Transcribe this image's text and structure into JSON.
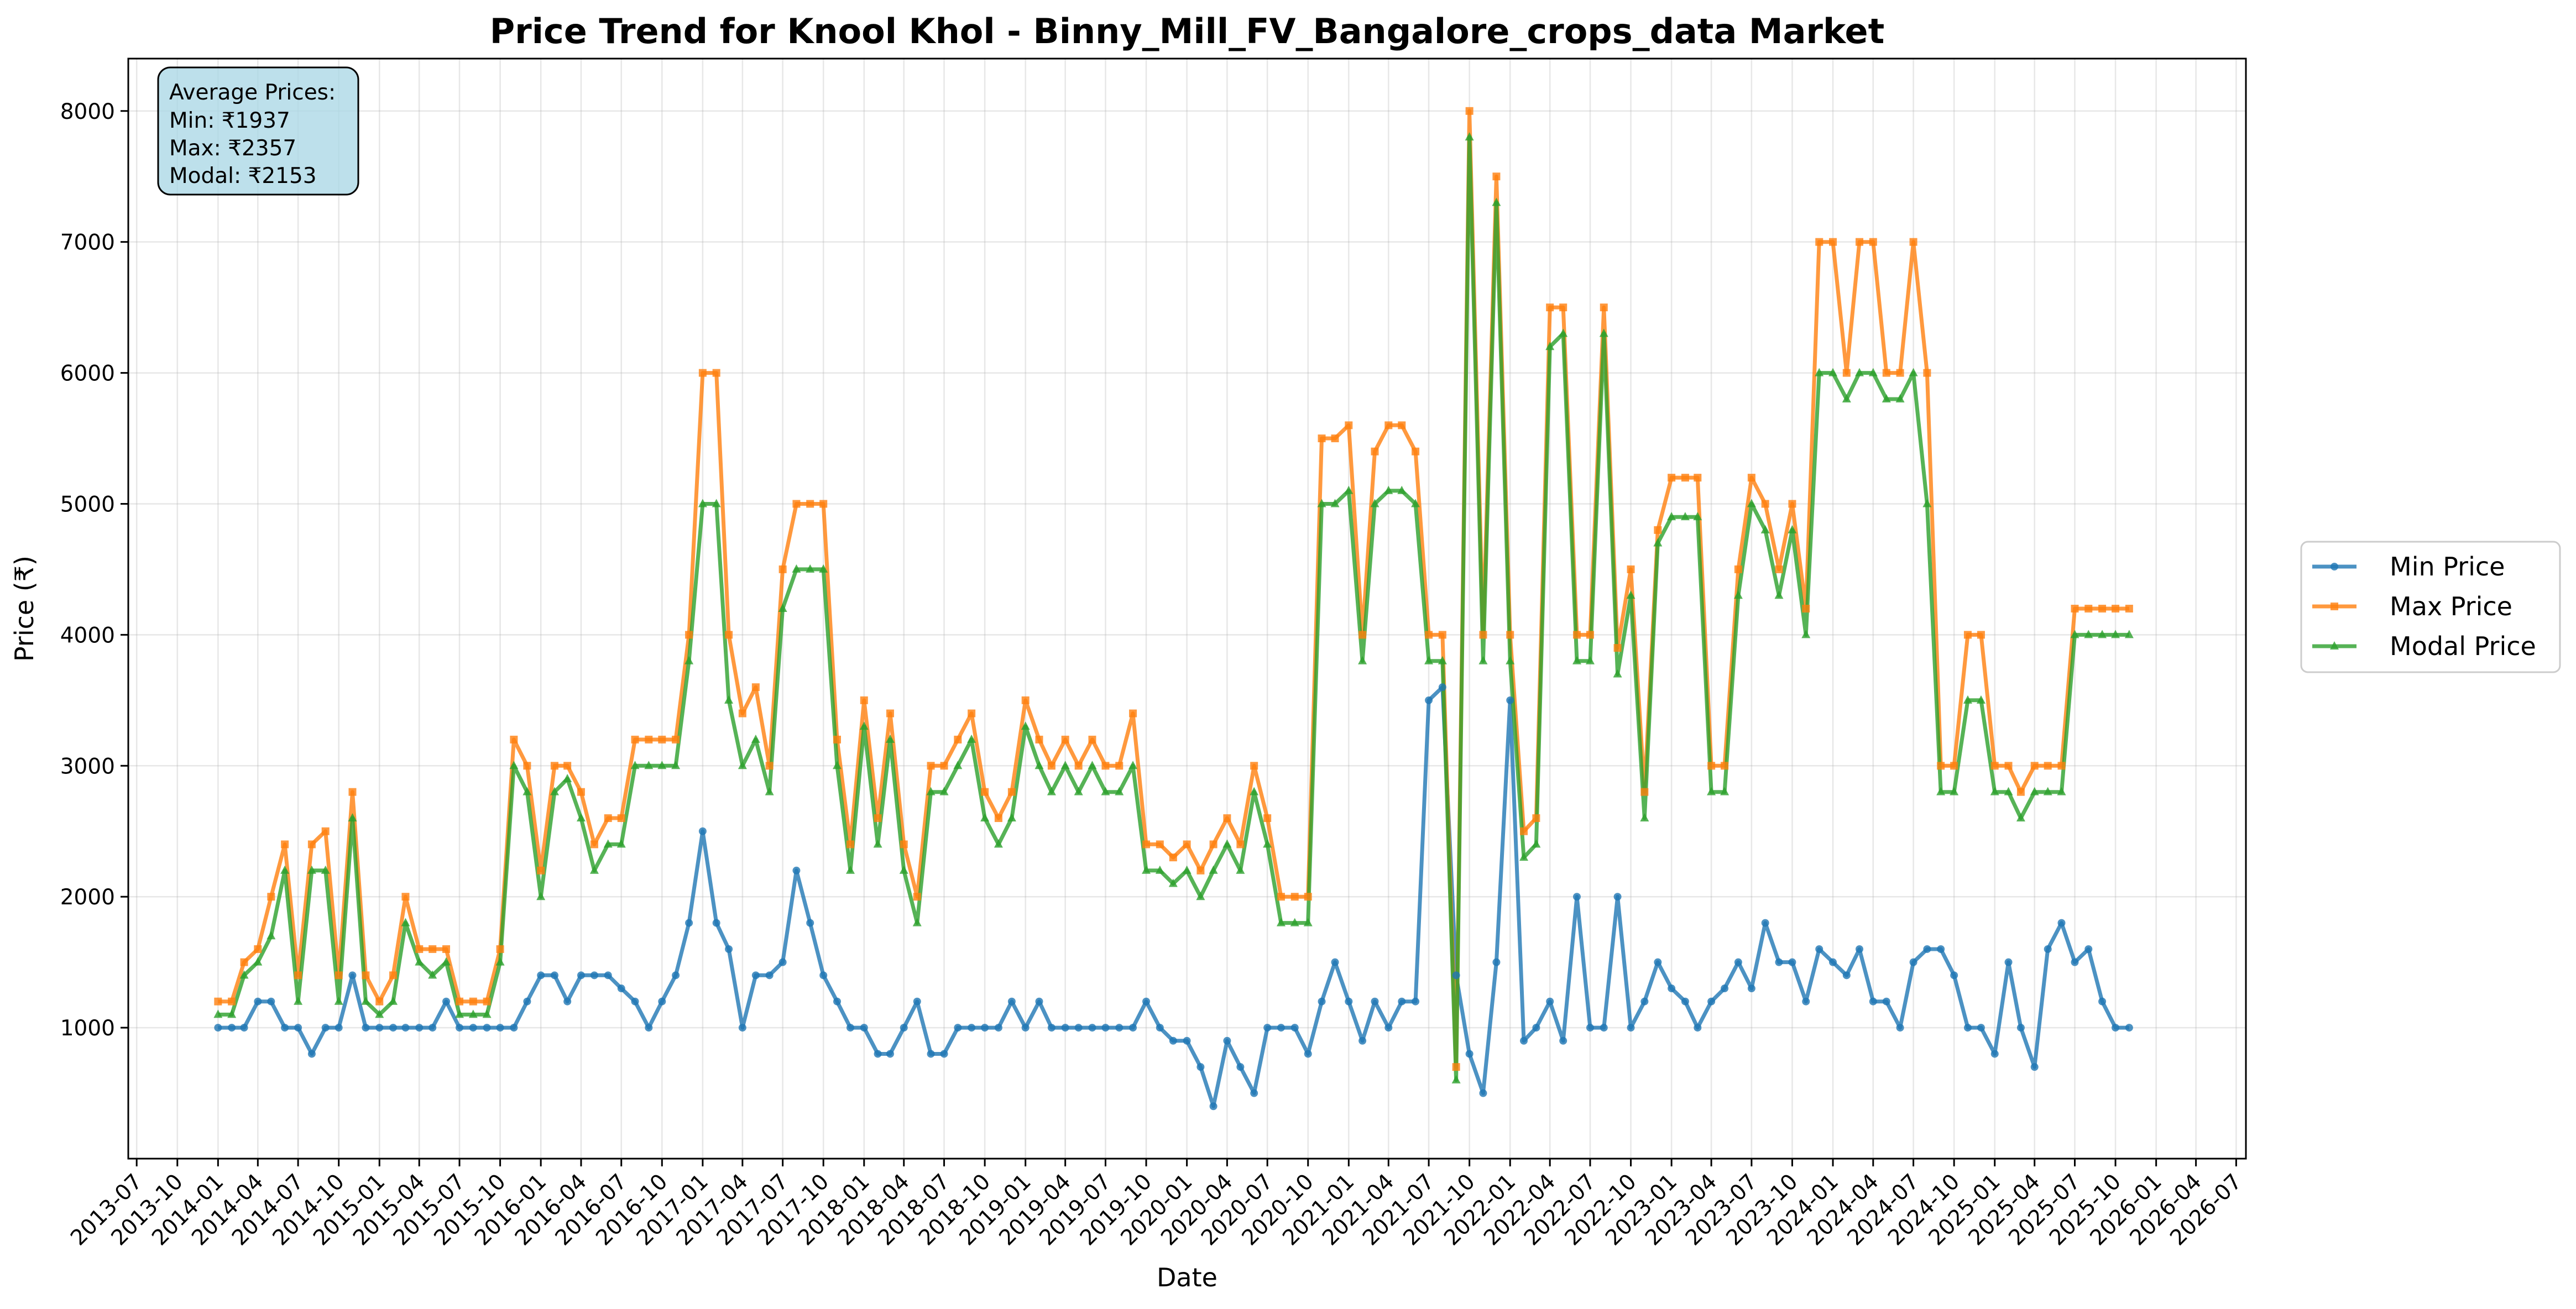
{
  "chart_data": {
    "type": "line",
    "title": "Price Trend for Knool Khol - Binny_Mill_FV_Bangalore_crops_data Market",
    "xlabel": "Date",
    "ylabel": "Price (₹)",
    "x_range": [
      "2013-06-12",
      "2026-07-23"
    ],
    "ylim": [
      0,
      8400
    ],
    "y_ticks": [
      1000,
      2000,
      3000,
      4000,
      5000,
      6000,
      7000,
      8000
    ],
    "x_ticks": [
      "2013-07",
      "2013-10",
      "2014-01",
      "2014-04",
      "2014-07",
      "2014-10",
      "2015-01",
      "2015-04",
      "2015-07",
      "2015-10",
      "2016-01",
      "2016-04",
      "2016-07",
      "2016-10",
      "2017-01",
      "2017-04",
      "2017-07",
      "2017-10",
      "2018-01",
      "2018-04",
      "2018-07",
      "2018-10",
      "2019-01",
      "2019-04",
      "2019-07",
      "2019-10",
      "2020-01",
      "2020-04",
      "2020-07",
      "2020-10",
      "2021-01",
      "2021-04",
      "2021-07",
      "2021-10",
      "2022-01",
      "2022-04",
      "2022-07",
      "2022-10",
      "2023-01",
      "2023-04",
      "2023-07",
      "2023-10",
      "2024-01",
      "2024-04",
      "2024-07",
      "2024-10",
      "2025-01",
      "2025-04",
      "2025-07",
      "2025-10",
      "2026-01",
      "2026-04",
      "2026-07"
    ],
    "grid": true,
    "legend_position": "outside right",
    "annotation": {
      "heading": "Average Prices:",
      "lines": [
        "Min: ₹1937",
        "Max: ₹2357",
        "Modal: ₹2153"
      ]
    },
    "x": [
      "2014-01-01",
      "2014-02-01",
      "2014-03-01",
      "2014-04-01",
      "2014-05-01",
      "2014-06-01",
      "2014-07-01",
      "2014-08-01",
      "2014-09-01",
      "2014-10-01",
      "2014-11-01",
      "2014-12-01",
      "2015-01-01",
      "2015-02-01",
      "2015-03-01",
      "2015-04-01",
      "2015-05-01",
      "2015-06-01",
      "2015-07-01",
      "2015-08-01",
      "2015-09-01",
      "2015-10-01",
      "2015-11-01",
      "2015-12-01",
      "2016-01-01",
      "2016-02-01",
      "2016-03-01",
      "2016-04-01",
      "2016-05-01",
      "2016-06-01",
      "2016-07-01",
      "2016-08-01",
      "2016-09-01",
      "2016-10-01",
      "2016-11-01",
      "2016-12-01",
      "2017-01-01",
      "2017-02-01",
      "2017-03-01",
      "2017-04-01",
      "2017-05-01",
      "2017-06-01",
      "2017-07-01",
      "2017-08-01",
      "2017-09-01",
      "2017-10-01",
      "2017-11-01",
      "2017-12-01",
      "2018-01-01",
      "2018-02-01",
      "2018-03-01",
      "2018-04-01",
      "2018-05-01",
      "2018-06-01",
      "2018-07-01",
      "2018-08-01",
      "2018-09-01",
      "2018-10-01",
      "2018-11-01",
      "2018-12-01",
      "2019-01-01",
      "2019-02-01",
      "2019-03-01",
      "2019-04-01",
      "2019-05-01",
      "2019-06-01",
      "2019-07-01",
      "2019-08-01",
      "2019-09-01",
      "2019-10-01",
      "2019-11-01",
      "2019-12-01",
      "2020-01-01",
      "2020-02-01",
      "2020-03-01",
      "2020-04-01",
      "2020-05-01",
      "2020-06-01",
      "2020-07-01",
      "2020-08-01",
      "2020-09-01",
      "2020-10-01",
      "2020-11-01",
      "2020-12-01",
      "2021-01-01",
      "2021-02-01",
      "2021-03-01",
      "2021-04-01",
      "2021-05-01",
      "2021-06-01",
      "2021-07-01",
      "2021-08-01",
      "2021-09-01",
      "2021-10-01",
      "2021-11-01",
      "2021-12-01",
      "2022-01-01",
      "2022-02-01",
      "2022-03-01",
      "2022-04-01",
      "2022-05-01",
      "2022-06-01",
      "2022-07-01",
      "2022-08-01",
      "2022-09-01",
      "2022-10-01",
      "2022-11-01",
      "2022-12-01",
      "2023-01-01",
      "2023-02-01",
      "2023-03-01",
      "2023-04-01",
      "2023-05-01",
      "2023-06-01",
      "2023-07-01",
      "2023-08-01",
      "2023-09-01",
      "2023-10-01",
      "2023-11-01",
      "2023-12-01",
      "2024-01-01",
      "2024-02-01",
      "2024-03-01",
      "2024-04-01",
      "2024-05-01",
      "2024-06-01",
      "2024-07-01",
      "2024-08-01",
      "2024-09-01",
      "2024-10-01",
      "2024-11-01",
      "2024-12-01",
      "2025-01-01",
      "2025-02-01",
      "2025-03-01",
      "2025-04-01",
      "2025-05-01",
      "2025-06-01",
      "2025-07-01",
      "2025-08-01",
      "2025-09-01",
      "2025-10-01",
      "2025-11-01"
    ],
    "series": [
      {
        "name": "Min Price",
        "color": "#1f77b4",
        "marker": "circle",
        "values": [
          1000,
          1000,
          1000,
          1200,
          1200,
          1000,
          1000,
          800,
          1000,
          1000,
          1400,
          1000,
          1000,
          1000,
          1000,
          1000,
          1000,
          1200,
          1000,
          1000,
          1000,
          1000,
          1000,
          1200,
          1400,
          1400,
          1200,
          1400,
          1400,
          1400,
          1300,
          1200,
          1000,
          1200,
          1400,
          1800,
          2500,
          1800,
          1600,
          1000,
          1400,
          1400,
          1500,
          2200,
          1800,
          1400,
          1200,
          1000,
          1000,
          800,
          800,
          1000,
          1200,
          800,
          800,
          1000,
          1000,
          1000,
          1000,
          1200,
          1000,
          1200,
          1000,
          1000,
          1000,
          1000,
          1000,
          1000,
          1000,
          1200,
          1000,
          900,
          900,
          700,
          400,
          900,
          700,
          500,
          1000,
          1000,
          1000,
          800,
          1200,
          1500,
          1200,
          900,
          1200,
          1000,
          1200,
          1200,
          3500,
          3600,
          1400,
          800,
          500,
          1500,
          3500,
          900,
          1000,
          1200,
          900,
          2000,
          1000,
          1000,
          2000,
          1000,
          1200,
          1500,
          1300,
          1200,
          1000,
          1200,
          1300,
          1500,
          1300,
          1800,
          1500,
          1500,
          1200,
          1600,
          1500,
          1400,
          1600,
          1200,
          1200,
          1000,
          1500,
          1600,
          1600,
          1400,
          1000,
          1000,
          800,
          1500,
          1000,
          700,
          1600,
          1800,
          1500,
          1600,
          1200,
          1000,
          1000
        ]
      },
      {
        "name": "Max Price",
        "color": "#ff7f0e",
        "marker": "square",
        "values": [
          1200,
          1200,
          1500,
          1600,
          2000,
          2400,
          1400,
          2400,
          2500,
          1400,
          2800,
          1400,
          1200,
          1400,
          2000,
          1600,
          1600,
          1600,
          1200,
          1200,
          1200,
          1600,
          3200,
          3000,
          2200,
          3000,
          3000,
          2800,
          2400,
          2600,
          2600,
          3200,
          3200,
          3200,
          3200,
          4000,
          6000,
          6000,
          4000,
          3400,
          3600,
          3000,
          4500,
          5000,
          5000,
          5000,
          3200,
          2400,
          3500,
          2600,
          3400,
          2400,
          2000,
          3000,
          3000,
          3200,
          3400,
          2800,
          2600,
          2800,
          3500,
          3200,
          3000,
          3200,
          3000,
          3200,
          3000,
          3000,
          3400,
          2400,
          2400,
          2300,
          2400,
          2200,
          2400,
          2600,
          2400,
          3000,
          2600,
          2000,
          2000,
          2000,
          5500,
          5500,
          5600,
          4000,
          5400,
          5600,
          5600,
          5400,
          4000,
          4000,
          700,
          8000,
          4000,
          7500,
          4000,
          2500,
          2600,
          6500,
          6500,
          4000,
          4000,
          6500,
          3900,
          4500,
          2800,
          4800,
          5200,
          5200,
          5200,
          3000,
          3000,
          4500,
          5200,
          5000,
          4500,
          5000,
          4200,
          7000,
          7000,
          6000,
          7000,
          7000,
          6000,
          6000,
          7000,
          6000,
          3000,
          3000,
          4000,
          4000,
          3000,
          3000,
          2800,
          3000,
          3000,
          3000,
          4200,
          4200,
          4200,
          4200,
          4200
        ]
      },
      {
        "name": "Modal Price",
        "color": "#2ca02c",
        "marker": "triangle",
        "values": [
          1100,
          1100,
          1400,
          1500,
          1700,
          2200,
          1200,
          2200,
          2200,
          1200,
          2600,
          1200,
          1100,
          1200,
          1800,
          1500,
          1400,
          1500,
          1100,
          1100,
          1100,
          1500,
          3000,
          2800,
          2000,
          2800,
          2900,
          2600,
          2200,
          2400,
          2400,
          3000,
          3000,
          3000,
          3000,
          3800,
          5000,
          5000,
          3500,
          3000,
          3200,
          2800,
          4200,
          4500,
          4500,
          4500,
          3000,
          2200,
          3300,
          2400,
          3200,
          2200,
          1800,
          2800,
          2800,
          3000,
          3200,
          2600,
          2400,
          2600,
          3300,
          3000,
          2800,
          3000,
          2800,
          3000,
          2800,
          2800,
          3000,
          2200,
          2200,
          2100,
          2200,
          2000,
          2200,
          2400,
          2200,
          2800,
          2400,
          1800,
          1800,
          1800,
          5000,
          5000,
          5100,
          3800,
          5000,
          5100,
          5100,
          5000,
          3800,
          3800,
          600,
          7800,
          3800,
          7300,
          3800,
          2300,
          2400,
          6200,
          6300,
          3800,
          3800,
          6300,
          3700,
          4300,
          2600,
          4700,
          4900,
          4900,
          4900,
          2800,
          2800,
          4300,
          5000,
          4800,
          4300,
          4800,
          4000,
          6000,
          6000,
          5800,
          6000,
          6000,
          5800,
          5800,
          6000,
          5000,
          2800,
          2800,
          3500,
          3500,
          2800,
          2800,
          2600,
          2800,
          2800,
          2800,
          4000,
          4000,
          4000,
          4000,
          4000
        ]
      }
    ]
  }
}
